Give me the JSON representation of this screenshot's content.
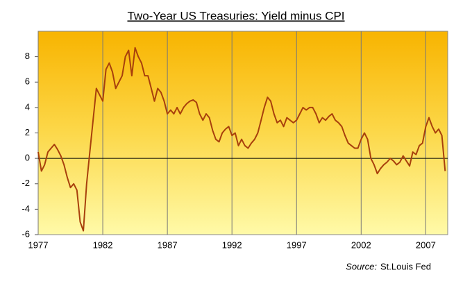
{
  "chart_data": {
    "type": "line",
    "title": "Two-Year US Treasuries: Yield minus CPI",
    "source_label": "Source:",
    "source": "St.Louis Fed",
    "x": [
      1977.0,
      1977.25,
      1977.5,
      1977.75,
      1978.0,
      1978.25,
      1978.5,
      1978.75,
      1979.0,
      1979.25,
      1979.5,
      1979.75,
      1980.0,
      1980.25,
      1980.5,
      1980.75,
      1981.0,
      1981.25,
      1981.5,
      1981.75,
      1982.0,
      1982.25,
      1982.5,
      1982.75,
      1983.0,
      1983.25,
      1983.5,
      1983.75,
      1984.0,
      1984.25,
      1984.5,
      1984.75,
      1985.0,
      1985.25,
      1985.5,
      1985.75,
      1986.0,
      1986.25,
      1986.5,
      1986.75,
      1987.0,
      1987.25,
      1987.5,
      1987.75,
      1988.0,
      1988.25,
      1988.5,
      1988.75,
      1989.0,
      1989.25,
      1989.5,
      1989.75,
      1990.0,
      1990.25,
      1990.5,
      1990.75,
      1991.0,
      1991.25,
      1991.5,
      1991.75,
      1992.0,
      1992.25,
      1992.5,
      1992.75,
      1993.0,
      1993.25,
      1993.5,
      1993.75,
      1994.0,
      1994.25,
      1994.5,
      1994.75,
      1995.0,
      1995.25,
      1995.5,
      1995.75,
      1996.0,
      1996.25,
      1996.5,
      1996.75,
      1997.0,
      1997.25,
      1997.5,
      1997.75,
      1998.0,
      1998.25,
      1998.5,
      1998.75,
      1999.0,
      1999.25,
      1999.5,
      1999.75,
      2000.0,
      2000.25,
      2000.5,
      2000.75,
      2001.0,
      2001.25,
      2001.5,
      2001.75,
      2002.0,
      2002.25,
      2002.5,
      2002.75,
      2003.0,
      2003.25,
      2003.5,
      2003.75,
      2004.0,
      2004.25,
      2004.5,
      2004.75,
      2005.0,
      2005.25,
      2005.5,
      2005.75,
      2006.0,
      2006.25,
      2006.5,
      2006.75,
      2007.0,
      2007.25,
      2007.5,
      2007.75,
      2008.0,
      2008.25,
      2008.5
    ],
    "series": [
      {
        "color": "#a8400c",
        "values": [
          0.5,
          -1.0,
          -0.5,
          0.5,
          0.8,
          1.1,
          0.7,
          0.2,
          -0.5,
          -1.5,
          -2.3,
          -2.0,
          -2.5,
          -5.0,
          -5.7,
          -2.0,
          0.5,
          3.0,
          5.5,
          5.0,
          4.5,
          7.0,
          7.5,
          6.8,
          5.5,
          6.0,
          6.5,
          8.0,
          8.5,
          6.5,
          8.7,
          8.0,
          7.5,
          6.5,
          6.5,
          5.5,
          4.5,
          5.5,
          5.2,
          4.5,
          3.5,
          3.8,
          3.5,
          4.0,
          3.5,
          4.0,
          4.3,
          4.5,
          4.6,
          4.4,
          3.5,
          3.0,
          3.5,
          3.2,
          2.2,
          1.5,
          1.3,
          2.0,
          2.3,
          2.5,
          1.8,
          2.0,
          1.0,
          1.5,
          1.0,
          0.8,
          1.2,
          1.5,
          2.0,
          3.0,
          4.0,
          4.8,
          4.5,
          3.5,
          2.8,
          3.0,
          2.5,
          3.2,
          3.0,
          2.8,
          3.0,
          3.5,
          4.0,
          3.8,
          4.0,
          4.0,
          3.5,
          2.8,
          3.2,
          3.0,
          3.3,
          3.5,
          3.0,
          2.8,
          2.5,
          1.8,
          1.2,
          1.0,
          0.8,
          0.8,
          1.5,
          2.0,
          1.5,
          0.0,
          -0.5,
          -1.2,
          -0.8,
          -0.5,
          -0.3,
          0.0,
          -0.2,
          -0.5,
          -0.3,
          0.2,
          -0.2,
          -0.6,
          0.5,
          0.3,
          1.0,
          1.2,
          2.5,
          3.2,
          2.5,
          2.0,
          2.3,
          1.8,
          -1.0
        ]
      }
    ],
    "xlim": [
      1977,
      2008.7
    ],
    "xticks": [
      1977,
      1982,
      1987,
      1992,
      1997,
      2002,
      2007
    ],
    "ylim": [
      -6,
      10
    ],
    "yticks": [
      -6,
      -4,
      -2,
      0,
      2,
      4,
      6,
      8
    ],
    "grid": true
  }
}
